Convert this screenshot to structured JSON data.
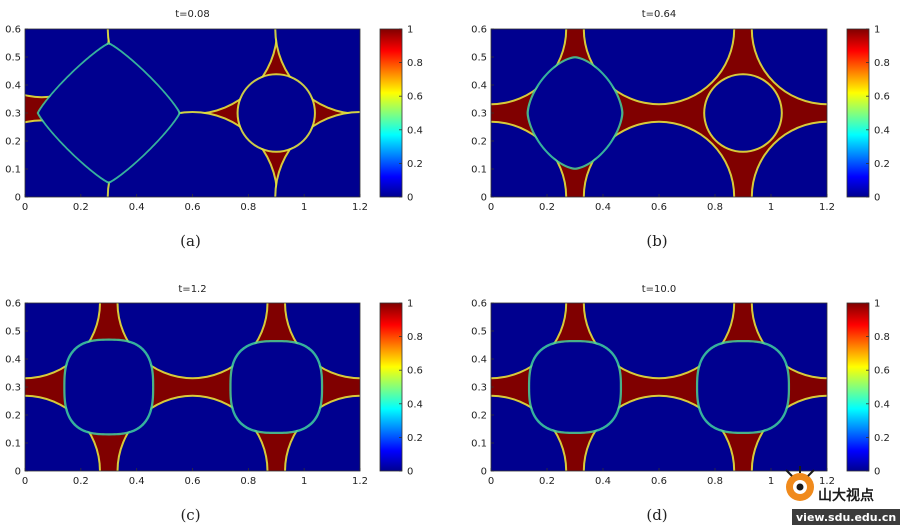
{
  "chart_data": [
    {
      "type": "heatmap",
      "title": "t=0.08",
      "caption": "(a)",
      "xlim": [
        0,
        1.2
      ],
      "ylim": [
        0,
        0.6
      ],
      "x_ticks": [
        "0",
        "0.2",
        "0.4",
        "0.6",
        "0.8",
        "1",
        "1.2"
      ],
      "y_ticks": [
        "0",
        "0.1",
        "0.2",
        "0.3",
        "0.4",
        "0.5",
        "0.6"
      ],
      "colorbar": {
        "min": 0,
        "max": 1,
        "ticks": [
          "0",
          "0.2",
          "0.4",
          "0.6",
          "0.8",
          "1"
        ]
      },
      "solid_circles": [
        {
          "cx": 0.06,
          "cy": 0.6,
          "r": 0.24
        },
        {
          "cx": 0.6,
          "cy": 0.6,
          "r": 0.3
        },
        {
          "cx": 0.06,
          "cy": 0.0,
          "r": 0.27
        },
        {
          "cx": 0.6,
          "cy": 0.0,
          "r": 0.3
        },
        {
          "cx": 1.2,
          "cy": 0.6,
          "r": 0.3
        },
        {
          "cx": 1.2,
          "cy": 0.0,
          "r": 0.3
        },
        {
          "cx": 0.9,
          "cy": 0.3,
          "r": 0.135
        }
      ],
      "droplet": {
        "cx": 0.3,
        "cy": 0.3,
        "rx": 0.25,
        "ry": 0.245,
        "power": 0.58
      }
    },
    {
      "type": "heatmap",
      "title": "t=0.64",
      "caption": "(b)",
      "xlim": [
        0,
        1.2
      ],
      "ylim": [
        0,
        0.6
      ],
      "x_ticks": [
        "0",
        "0.2",
        "0.4",
        "0.6",
        "0.8",
        "1",
        "1.2"
      ],
      "y_ticks": [
        "0",
        "0.1",
        "0.2",
        "0.3",
        "0.4",
        "0.5",
        "0.6"
      ],
      "colorbar": {
        "min": 0,
        "max": 1,
        "ticks": [
          "0",
          "0.2",
          "0.4",
          "0.6",
          "0.8",
          "1"
        ]
      },
      "solid_circles": [
        {
          "cx": 0.0,
          "cy": 0.6,
          "r": 0.265
        },
        {
          "cx": 0.6,
          "cy": 0.6,
          "r": 0.265
        },
        {
          "cx": 0.0,
          "cy": 0.0,
          "r": 0.265
        },
        {
          "cx": 0.6,
          "cy": 0.0,
          "r": 0.265
        },
        {
          "cx": 1.2,
          "cy": 0.6,
          "r": 0.265
        },
        {
          "cx": 1.2,
          "cy": 0.0,
          "r": 0.265
        },
        {
          "cx": 0.9,
          "cy": 0.3,
          "r": 0.135
        }
      ],
      "droplet": {
        "cx": 0.3,
        "cy": 0.3,
        "rx": 0.165,
        "ry": 0.195,
        "power": 0.8
      }
    },
    {
      "type": "heatmap",
      "title": "t=1.2",
      "caption": "(c)",
      "xlim": [
        0,
        1.2
      ],
      "ylim": [
        0,
        0.6
      ],
      "x_ticks": [
        "0",
        "0.2",
        "0.4",
        "0.6",
        "0.8",
        "1",
        "1.2"
      ],
      "y_ticks": [
        "0",
        "0.1",
        "0.2",
        "0.3",
        "0.4",
        "0.5",
        "0.6"
      ],
      "colorbar": {
        "min": 0,
        "max": 1,
        "ticks": [
          "0",
          "0.2",
          "0.4",
          "0.6",
          "0.8",
          "1"
        ]
      },
      "solid_circles": [
        {
          "cx": 0.0,
          "cy": 0.6,
          "r": 0.265
        },
        {
          "cx": 0.6,
          "cy": 0.6,
          "r": 0.265
        },
        {
          "cx": 0.0,
          "cy": 0.0,
          "r": 0.265
        },
        {
          "cx": 0.6,
          "cy": 0.0,
          "r": 0.265
        },
        {
          "cx": 1.2,
          "cy": 0.6,
          "r": 0.265
        },
        {
          "cx": 1.2,
          "cy": 0.0,
          "r": 0.265
        }
      ],
      "droplets": [
        {
          "cx": 0.3,
          "cy": 0.3,
          "rx": 0.155,
          "ry": 0.165,
          "power": 1.4
        },
        {
          "cx": 0.9,
          "cy": 0.3,
          "rx": 0.16,
          "ry": 0.16,
          "power": 1.4
        }
      ]
    },
    {
      "type": "heatmap",
      "title": "t=10.0",
      "caption": "(d)",
      "xlim": [
        0,
        1.2
      ],
      "ylim": [
        0,
        0.6
      ],
      "x_ticks": [
        "0",
        "0.2",
        "0.4",
        "0.6",
        "0.8",
        "1",
        "1.2"
      ],
      "y_ticks": [
        "0",
        "0.1",
        "0.2",
        "0.3",
        "0.4",
        "0.5",
        "0.6"
      ],
      "colorbar": {
        "min": 0,
        "max": 1,
        "ticks": [
          "0",
          "0.2",
          "0.4",
          "0.6",
          "0.8",
          "1"
        ]
      },
      "solid_circles": [
        {
          "cx": 0.0,
          "cy": 0.6,
          "r": 0.265
        },
        {
          "cx": 0.6,
          "cy": 0.6,
          "r": 0.265
        },
        {
          "cx": 0.0,
          "cy": 0.0,
          "r": 0.265
        },
        {
          "cx": 0.6,
          "cy": 0.0,
          "r": 0.265
        },
        {
          "cx": 1.2,
          "cy": 0.6,
          "r": 0.265
        },
        {
          "cx": 1.2,
          "cy": 0.0,
          "r": 0.265
        }
      ],
      "droplets": [
        {
          "cx": 0.3,
          "cy": 0.3,
          "rx": 0.16,
          "ry": 0.16,
          "power": 1.35
        },
        {
          "cx": 0.9,
          "cy": 0.3,
          "rx": 0.16,
          "ry": 0.16,
          "power": 1.35
        }
      ]
    }
  ],
  "colors": {
    "matrix": "#00008f",
    "phase": "#800000",
    "interface": [
      "#e0e040",
      "#40d0a0",
      "#f08030"
    ],
    "colormap": [
      "#00008f",
      "#0000ff",
      "#00ffff",
      "#ffff00",
      "#ff0000",
      "#800000"
    ]
  },
  "watermark": {
    "logo_text": "山大视点",
    "url_text": "view.sdu.edu.cn"
  }
}
